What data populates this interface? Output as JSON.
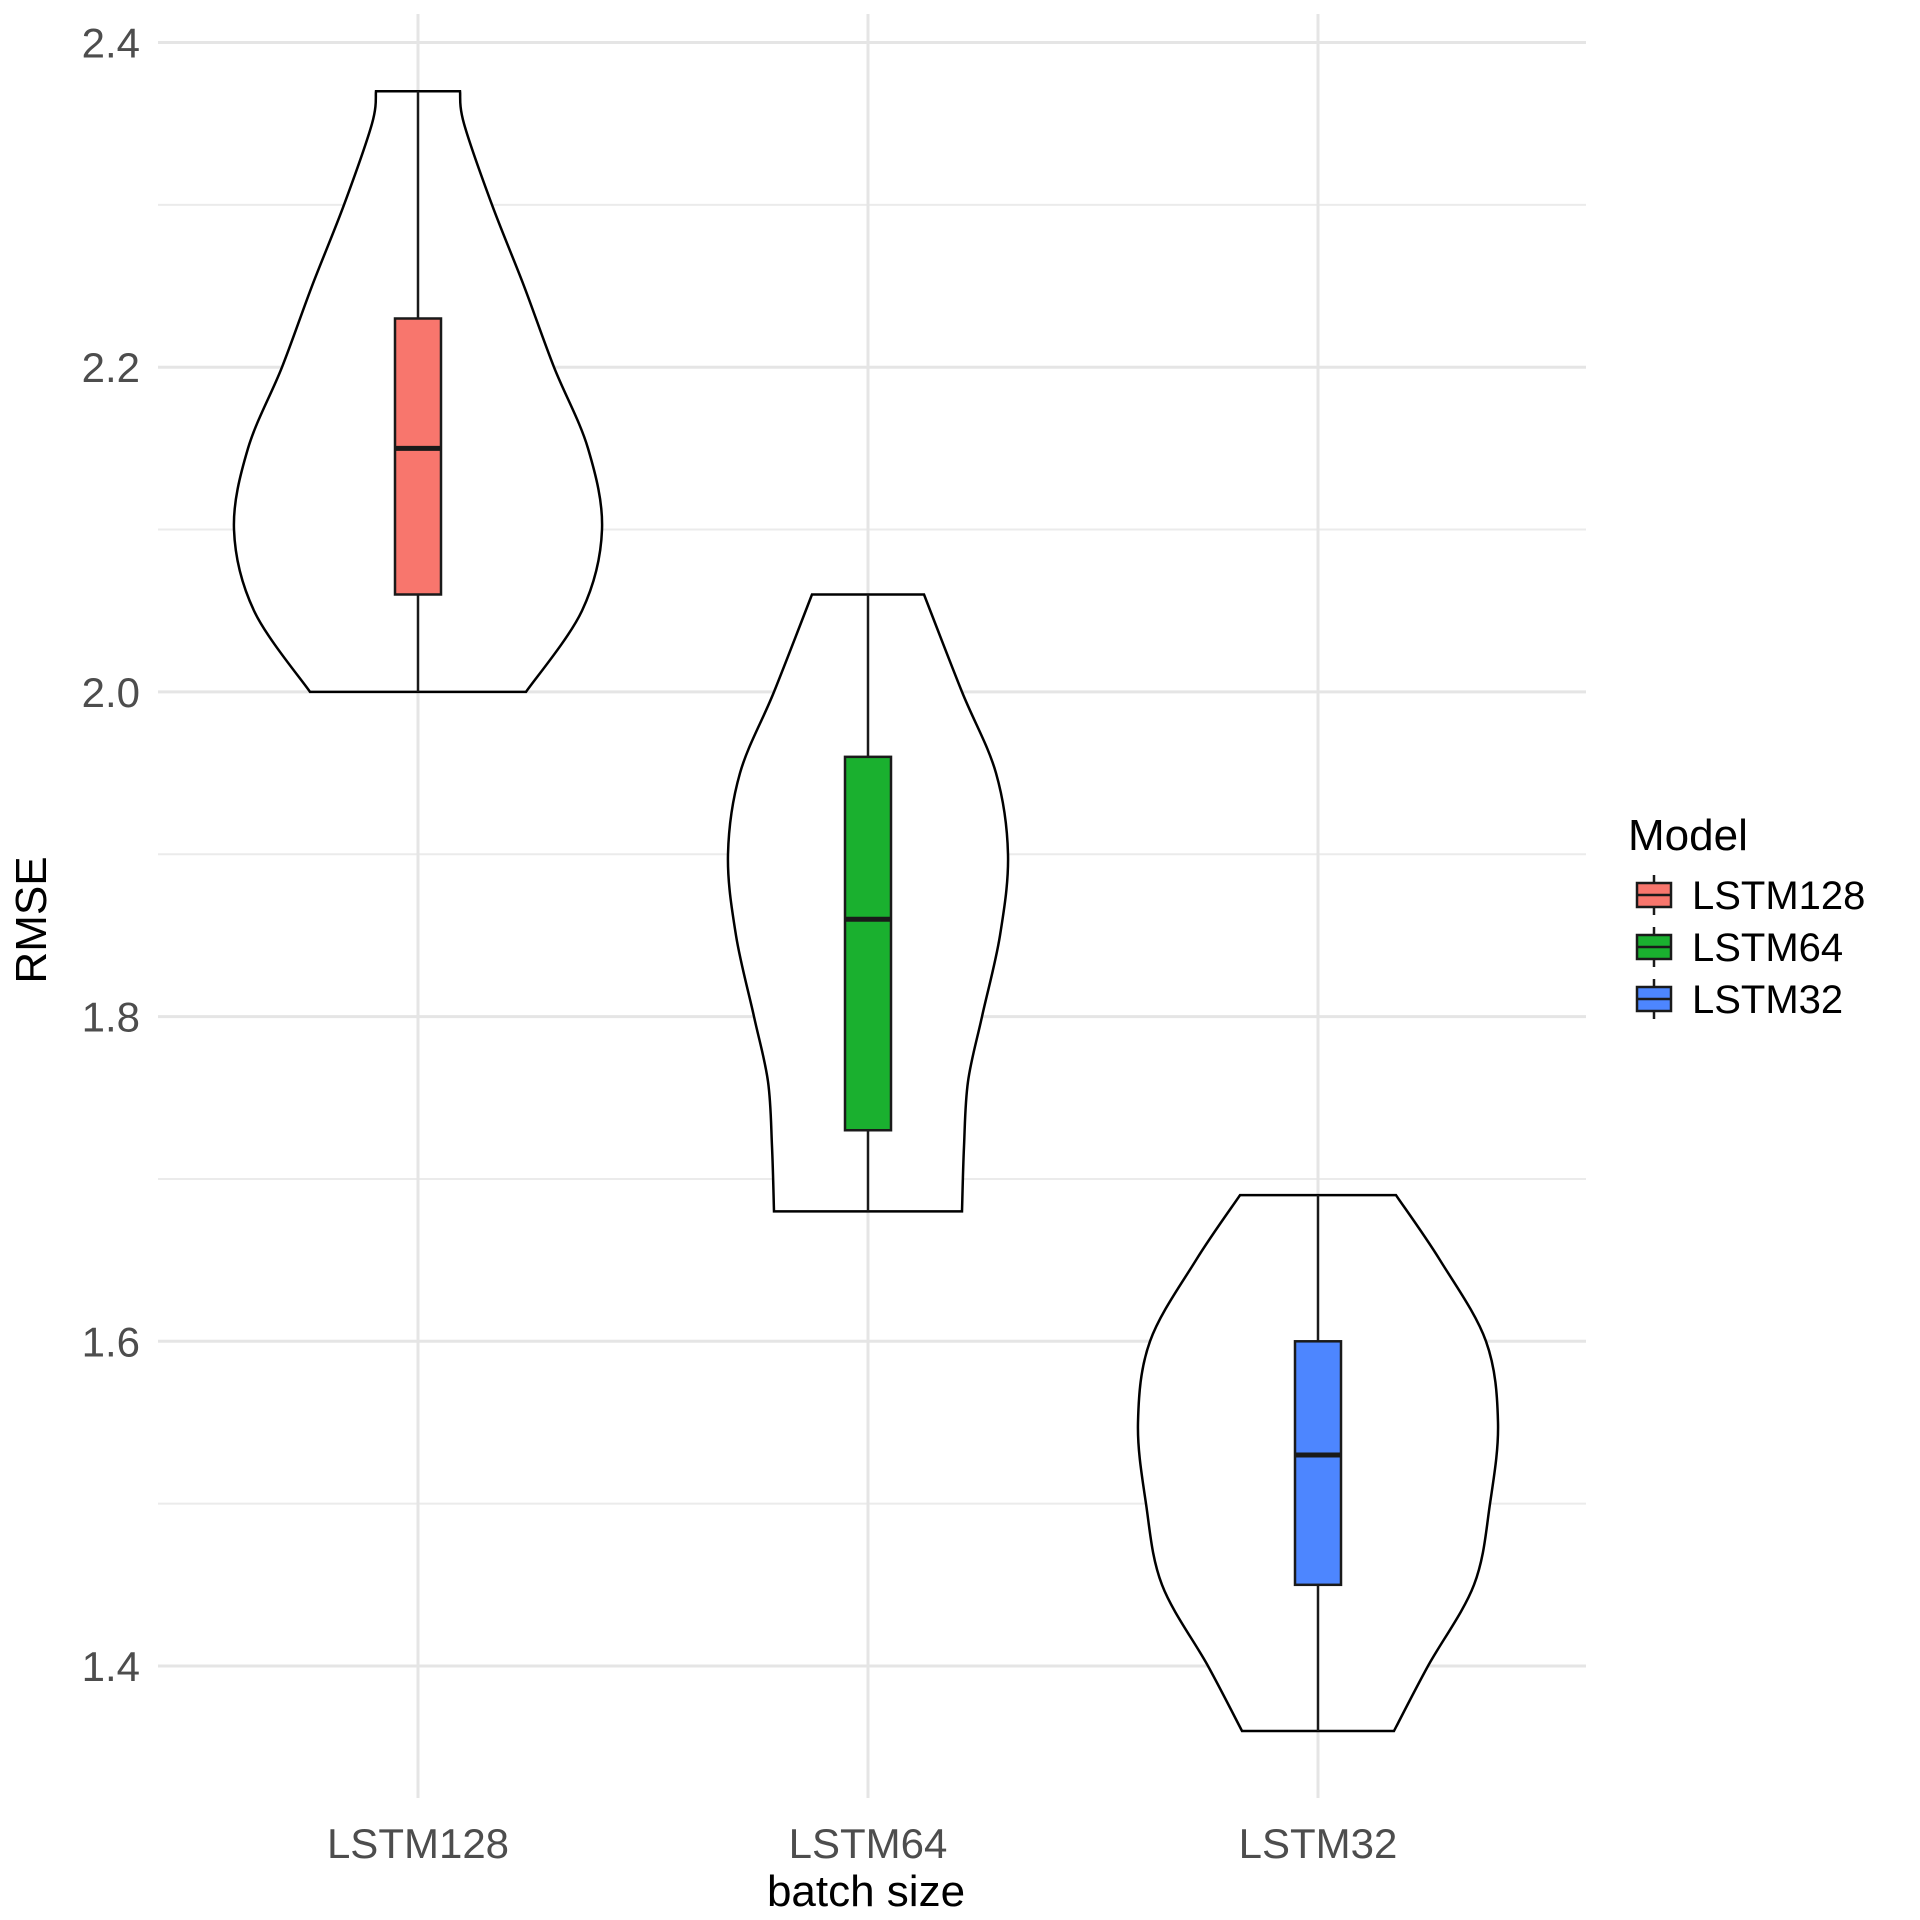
{
  "chart_data": {
    "type": "violin",
    "title": "",
    "xlabel": "batch size",
    "ylabel": "RMSE",
    "ylim": [
      1.32,
      2.42
    ],
    "yticks": [
      "1.4",
      "1.6",
      "1.8",
      "2.0",
      "2.2",
      "2.4"
    ],
    "grid": true,
    "legend": {
      "title": "Model",
      "position": "right"
    },
    "categories": [
      "LSTM128",
      "LSTM64",
      "LSTM32"
    ],
    "series": [
      {
        "name": "LSTM128",
        "color": "#F8766D",
        "min": 2.0,
        "q1": 2.06,
        "median": 2.15,
        "q3": 2.23,
        "max": 2.37,
        "density": [
          [
            2.0,
            0.54
          ],
          [
            2.05,
            0.82
          ],
          [
            2.1,
            0.92
          ],
          [
            2.15,
            0.85
          ],
          [
            2.2,
            0.68
          ],
          [
            2.25,
            0.53
          ],
          [
            2.3,
            0.37
          ],
          [
            2.35,
            0.23
          ],
          [
            2.37,
            0.21
          ]
        ]
      },
      {
        "name": "LSTM64",
        "color": "#1AB02F",
        "min": 1.68,
        "q1": 1.73,
        "median": 1.86,
        "q3": 1.96,
        "max": 2.06,
        "density": [
          [
            1.68,
            0.47
          ],
          [
            1.72,
            0.48
          ],
          [
            1.76,
            0.5
          ],
          [
            1.8,
            0.57
          ],
          [
            1.85,
            0.66
          ],
          [
            1.9,
            0.7
          ],
          [
            1.95,
            0.64
          ],
          [
            2.0,
            0.47
          ],
          [
            2.06,
            0.28
          ]
        ]
      },
      {
        "name": "LSTM32",
        "color": "#4D86FF",
        "min": 1.36,
        "q1": 1.45,
        "median": 1.53,
        "q3": 1.6,
        "max": 1.69,
        "density": [
          [
            1.36,
            0.38
          ],
          [
            1.4,
            0.55
          ],
          [
            1.45,
            0.78
          ],
          [
            1.5,
            0.86
          ],
          [
            1.55,
            0.9
          ],
          [
            1.6,
            0.84
          ],
          [
            1.65,
            0.61
          ],
          [
            1.69,
            0.39
          ]
        ]
      }
    ]
  }
}
